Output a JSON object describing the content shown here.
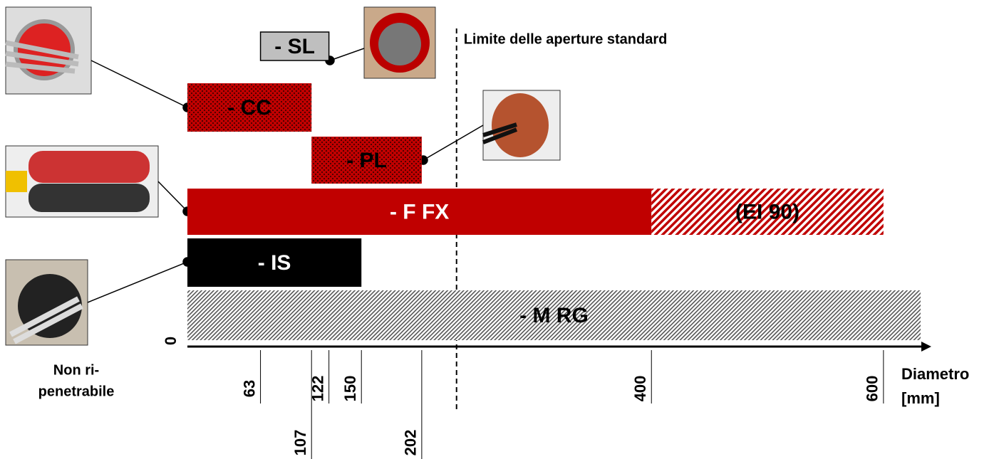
{
  "chart_data": {
    "type": "range_bar",
    "xlim": [
      0,
      640
    ],
    "xticks": [
      0,
      63,
      107,
      122,
      150,
      202,
      400,
      600
    ],
    "xlabel": [
      "Diametro",
      "[mm]"
    ],
    "reference_line": {
      "value": 232,
      "label": "Limite delle aperture standard"
    },
    "note": [
      "Non ri-",
      "penetrabile"
    ],
    "bars": [
      {
        "label": "- SL",
        "values": [
          63,
          122
        ],
        "style": "gray"
      },
      {
        "label": "- CC",
        "values": [
          0,
          107
        ],
        "style": "dotted-red"
      },
      {
        "label": "- PL",
        "values": [
          107,
          202
        ],
        "style": "dotted-red"
      },
      {
        "label": "- F FX",
        "values": [
          0,
          400
        ],
        "style": "solid-red"
      },
      {
        "label": "(EI 90)",
        "values": [
          400,
          600
        ],
        "style": "hatched-red"
      },
      {
        "label": "- IS",
        "values": [
          0,
          150
        ],
        "style": "black"
      },
      {
        "label": "- M RG",
        "values": [
          0,
          632
        ],
        "style": "hatched-gray"
      }
    ]
  }
}
